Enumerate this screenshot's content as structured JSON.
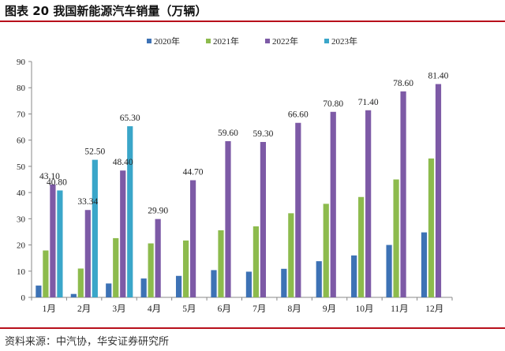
{
  "header": {
    "title": "图表 20  我国新能源汽车销量（万辆）"
  },
  "footer": {
    "source": "资料来源：中汽协，华安证券研究所"
  },
  "colors": {
    "accent_rule": "#b80f1b",
    "s2020": "#3d72b5",
    "s2021": "#8dbb4d",
    "s2022": "#7d5aa6",
    "s2023": "#3aa6c9"
  },
  "chart_data": {
    "type": "bar",
    "title": "我国新能源汽车销量（万辆）",
    "xlabel": "",
    "ylabel": "",
    "ylim": [
      0,
      90
    ],
    "yticks": [
      0,
      10,
      20,
      30,
      40,
      50,
      60,
      70,
      80,
      90
    ],
    "legend_position": "top-center",
    "categories": [
      "1月",
      "2月",
      "3月",
      "4月",
      "5月",
      "6月",
      "7月",
      "8月",
      "9月",
      "10月",
      "11月",
      "12月"
    ],
    "series": [
      {
        "name": "2020年",
        "color": "#3d72b5",
        "values": [
          4.5,
          1.3,
          5.3,
          7.2,
          8.2,
          10.4,
          9.8,
          10.9,
          13.8,
          16.0,
          20.0,
          24.8
        ]
      },
      {
        "name": "2021年",
        "color": "#8dbb4d",
        "values": [
          17.9,
          11.0,
          22.6,
          20.6,
          21.7,
          25.6,
          27.1,
          32.1,
          35.7,
          38.3,
          45.0,
          53.0
        ]
      },
      {
        "name": "2022年",
        "color": "#7d5aa6",
        "values": [
          43.1,
          33.34,
          48.4,
          29.9,
          44.7,
          59.6,
          59.3,
          66.6,
          70.8,
          71.4,
          78.6,
          81.4
        ],
        "labels": [
          "43.10",
          "33.34",
          "48.40",
          "29.90",
          "44.70",
          "59.60",
          "59.30",
          "66.60",
          "70.80",
          "71.40",
          "78.60",
          "81.40"
        ]
      },
      {
        "name": "2023年",
        "color": "#3aa6c9",
        "values": [
          40.8,
          52.5,
          65.3,
          null,
          null,
          null,
          null,
          null,
          null,
          null,
          null,
          null
        ],
        "labels": [
          "40.80",
          "52.50",
          "65.30",
          null,
          null,
          null,
          null,
          null,
          null,
          null,
          null,
          null
        ]
      }
    ]
  }
}
